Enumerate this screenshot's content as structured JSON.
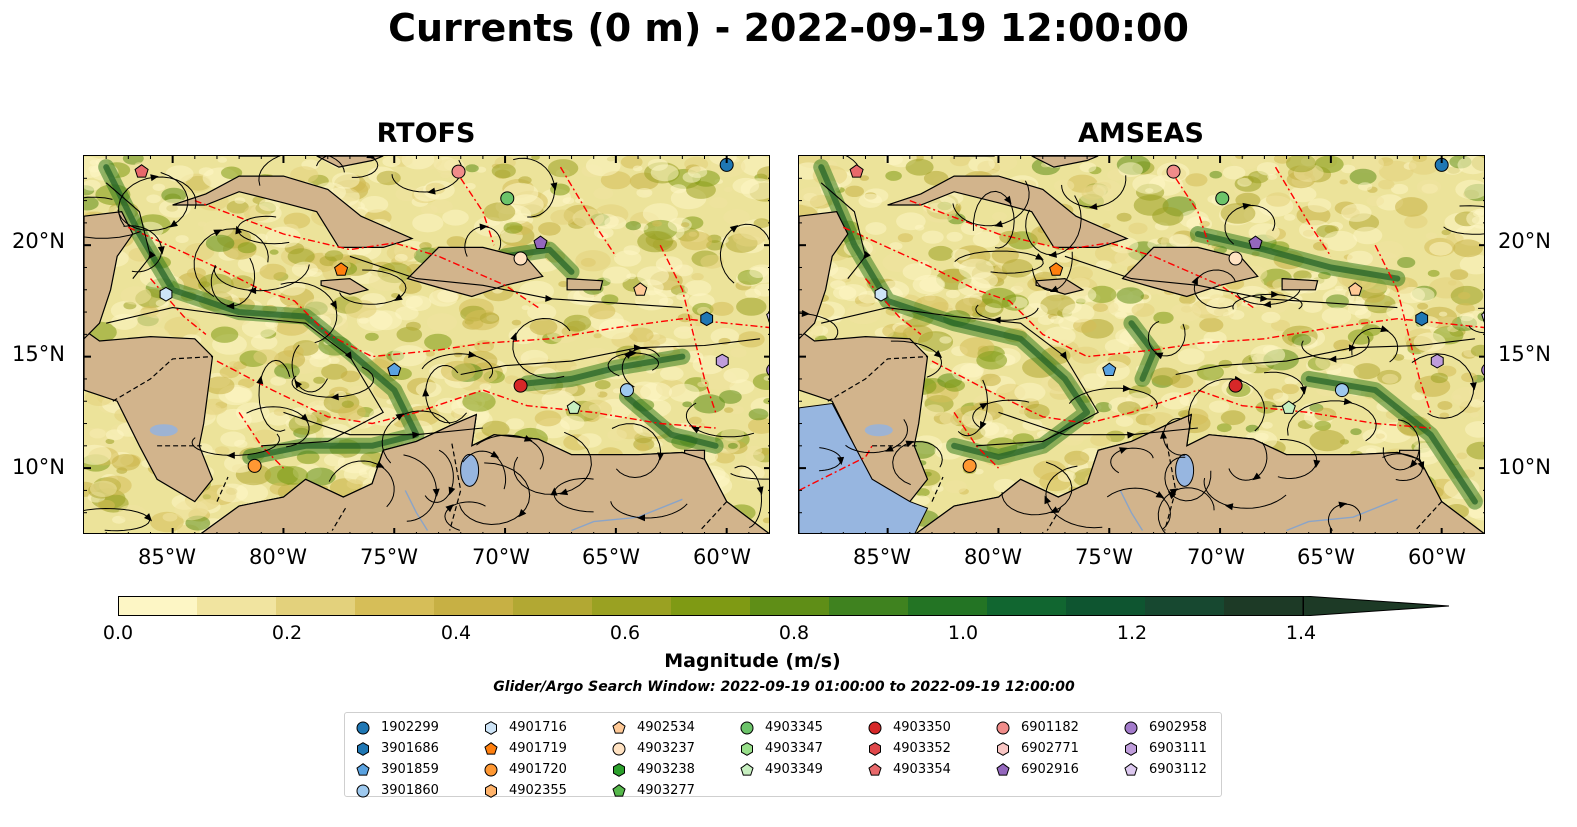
{
  "title": "Currents (0 m) - 2022-09-19 12:00:00",
  "panels": [
    {
      "title": "RTOFS",
      "model": "RTOFS"
    },
    {
      "title": "AMSEAS",
      "model": "AMSEAS"
    }
  ],
  "axes": {
    "lon_ticks": [
      "85°W",
      "80°W",
      "75°W",
      "70°W",
      "65°W",
      "60°W"
    ],
    "lat_ticks": [
      "20°N",
      "15°N",
      "10°N"
    ],
    "lon_range": [
      -89,
      -58
    ],
    "lat_range": [
      7,
      24
    ]
  },
  "colorbar": {
    "label": "Magnitude (m/s)",
    "ticks": [
      "0.0",
      "0.2",
      "0.4",
      "0.6",
      "0.8",
      "1.0",
      "1.2",
      "1.4"
    ],
    "range": [
      0,
      1.5
    ],
    "extend": "max",
    "colors": [
      "#fdf6c5",
      "#f1e4a0",
      "#e3d17c",
      "#d6be58",
      "#c7b044",
      "#b2a833",
      "#9aa122",
      "#7f9a14",
      "#5f8e17",
      "#3f821f",
      "#237424",
      "#116630",
      "#0e5530",
      "#174830",
      "#1d3a26"
    ]
  },
  "search_window": "Glider/Argo Search Window: 2022-09-19 01:00:00 to 2022-09-19 12:00:00",
  "legend": [
    {
      "id": "1902299",
      "color": "#1f77b4",
      "marker": "circle"
    },
    {
      "id": "3901686",
      "color": "#1f77b4",
      "marker": "hexagon"
    },
    {
      "id": "3901859",
      "color": "#5aa2e0",
      "marker": "pentagon"
    },
    {
      "id": "3901860",
      "color": "#9ec9ef",
      "marker": "circle"
    },
    {
      "id": "4901716",
      "color": "#cde4f7",
      "marker": "hexagon"
    },
    {
      "id": "4901719",
      "color": "#ff7f0e",
      "marker": "pentagon"
    },
    {
      "id": "4901720",
      "color": "#ff9833",
      "marker": "circle"
    },
    {
      "id": "4902355",
      "color": "#ffb36b",
      "marker": "hexagon"
    },
    {
      "id": "4902534",
      "color": "#ffc996",
      "marker": "pentagon"
    },
    {
      "id": "4903237",
      "color": "#ffe2c2",
      "marker": "circle"
    },
    {
      "id": "4903238",
      "color": "#2ca02c",
      "marker": "hexagon"
    },
    {
      "id": "4903277",
      "color": "#56b84b",
      "marker": "pentagon"
    },
    {
      "id": "4903345",
      "color": "#6cc46a",
      "marker": "circle"
    },
    {
      "id": "4903347",
      "color": "#98df8a",
      "marker": "hexagon"
    },
    {
      "id": "4903349",
      "color": "#c7efc0",
      "marker": "pentagon"
    },
    {
      "id": "4903350",
      "color": "#d62728",
      "marker": "circle"
    },
    {
      "id": "4903352",
      "color": "#e0474a",
      "marker": "hexagon"
    },
    {
      "id": "4903354",
      "color": "#e8696b",
      "marker": "pentagon"
    },
    {
      "id": "6901182",
      "color": "#f08c8a",
      "marker": "circle"
    },
    {
      "id": "6902771",
      "color": "#f9c6c4",
      "marker": "hexagon"
    },
    {
      "id": "6902916",
      "color": "#9467bd",
      "marker": "pentagon"
    },
    {
      "id": "6902958",
      "color": "#a37bcb",
      "marker": "circle"
    },
    {
      "id": "6903111",
      "color": "#bf9ddb",
      "marker": "hexagon"
    },
    {
      "id": "6903112",
      "color": "#dcc8ef",
      "marker": "pentagon"
    }
  ],
  "floats": [
    {
      "id": "1902299",
      "lon": -60,
      "lat": 23.6
    },
    {
      "id": "3901686",
      "lon": -60.9,
      "lat": 16.7
    },
    {
      "id": "3901859",
      "lon": -75,
      "lat": 14.4
    },
    {
      "id": "3901860",
      "lon": -64.5,
      "lat": 13.5
    },
    {
      "id": "4901716",
      "lon": -85.3,
      "lat": 17.8
    },
    {
      "id": "4901719",
      "lon": -77.4,
      "lat": 18.9
    },
    {
      "id": "4901720",
      "lon": -81.3,
      "lat": 10.1
    },
    {
      "id": "4902534",
      "lon": -63.9,
      "lat": 18
    },
    {
      "id": "4903237",
      "lon": -69.3,
      "lat": 19.4
    },
    {
      "id": "4903345",
      "lon": -69.9,
      "lat": 22.1
    },
    {
      "id": "4903349",
      "lon": -66.9,
      "lat": 12.7
    },
    {
      "id": "4903350",
      "lon": -69.3,
      "lat": 13.7
    },
    {
      "id": "4903354",
      "lon": -86.4,
      "lat": 23.3
    },
    {
      "id": "6901182",
      "lon": -72.1,
      "lat": 23.3
    },
    {
      "id": "6902916",
      "lon": -68.4,
      "lat": 20.1
    },
    {
      "id": "6902958",
      "lon": -57.9,
      "lat": 14.4
    },
    {
      "id": "6903111",
      "lon": -60.2,
      "lat": 14.8
    },
    {
      "id": "6903112",
      "lon": -57.9,
      "lat": 16.8
    },
    {
      "id": "4903352",
      "lon": -57.7,
      "lat": 17.9
    }
  ]
}
